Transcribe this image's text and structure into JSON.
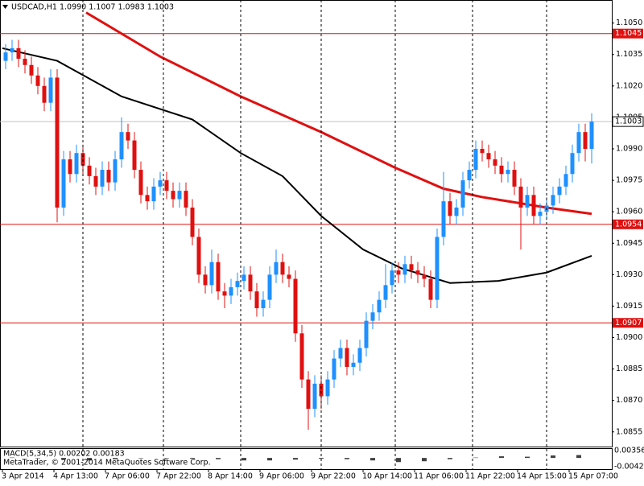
{
  "chart_data": {
    "type": "candlestick",
    "title": "USDCAD,H1  1.0990 1.1007 1.0983 1.1003",
    "up_color": "#1e90ff",
    "down_color": "#e01010",
    "x": [
      1,
      3,
      5,
      7,
      9,
      11,
      13,
      15,
      17,
      19,
      21,
      23,
      25,
      27,
      29,
      31,
      33,
      35,
      37,
      39,
      41,
      43,
      45,
      47,
      49,
      51,
      53,
      55,
      57,
      59,
      61,
      63,
      65,
      67,
      69,
      71,
      73,
      75,
      77,
      79,
      81,
      83,
      85,
      87,
      89,
      91,
      93,
      95,
      97,
      99,
      101,
      103,
      105,
      107,
      109,
      111,
      113,
      115,
      117,
      119,
      121,
      123,
      125,
      127,
      129,
      131,
      133,
      135,
      137,
      139,
      141,
      143,
      145,
      147,
      149,
      151,
      153,
      155,
      157,
      159,
      161,
      163,
      165,
      167,
      169,
      171,
      173,
      175,
      177,
      179,
      181,
      183
    ],
    "open": [
      1.1032,
      1.1036,
      1.1038,
      1.1033,
      1.103,
      1.1025,
      1.102,
      1.1012,
      1.1024,
      1.0962,
      1.0985,
      1.0978,
      1.0988,
      1.0982,
      1.0977,
      1.0972,
      1.098,
      1.0974,
      1.0985,
      1.0998,
      1.0994,
      1.098,
      1.0968,
      1.0965,
      1.0972,
      1.0975,
      1.097,
      1.0966,
      1.097,
      1.0962,
      1.0948,
      1.093,
      1.0925,
      1.0936,
      1.0922,
      1.092,
      1.0924,
      1.0927,
      1.093,
      1.0922,
      1.0914,
      1.0918,
      1.093,
      1.0936,
      1.093,
      1.0928,
      1.0902,
      1.088,
      1.0866,
      1.0878,
      1.0872,
      1.088,
      1.089,
      1.0895,
      1.0886,
      1.0888,
      1.0895,
      1.0908,
      1.0912,
      1.0918,
      1.0925,
      1.0932,
      1.093,
      1.0935,
      1.0932,
      1.093,
      1.0928,
      1.0918,
      1.0948,
      1.0965,
      1.0958,
      1.0962,
      1.0975,
      1.098,
      1.099,
      1.0988,
      1.0985,
      1.0982,
      1.0978,
      1.098,
      1.0972,
      1.0962,
      1.0968,
      1.0958,
      1.096,
      1.0963,
      1.0968,
      1.0972,
      1.0978,
      1.0988,
      1.0998,
      1.099
    ],
    "high": [
      1.104,
      1.1042,
      1.1042,
      1.1037,
      1.1034,
      1.1029,
      1.1024,
      1.1028,
      1.1028,
      1.0989,
      1.0989,
      1.0992,
      1.0992,
      1.0986,
      1.0981,
      1.0984,
      1.0984,
      1.0989,
      1.1005,
      1.1002,
      1.0998,
      1.0984,
      1.0972,
      1.0976,
      1.0979,
      1.0979,
      1.0974,
      1.0974,
      1.0974,
      1.0966,
      1.0952,
      1.0934,
      1.0942,
      1.094,
      1.0926,
      1.0928,
      1.0931,
      1.0934,
      1.0934,
      1.0926,
      1.0922,
      1.0934,
      1.0942,
      1.094,
      1.0934,
      1.0932,
      1.0906,
      1.0884,
      1.0882,
      1.0882,
      1.0884,
      1.0894,
      1.0899,
      1.0899,
      1.0892,
      1.0899,
      1.0912,
      1.0916,
      1.0922,
      1.0935,
      1.0936,
      1.0936,
      1.0939,
      1.0939,
      1.0936,
      1.0934,
      1.0932,
      1.0952,
      1.0979,
      1.0969,
      1.0966,
      1.0979,
      1.0984,
      1.0994,
      1.0994,
      1.0992,
      1.0989,
      1.0986,
      1.0984,
      1.0984,
      1.0976,
      1.0972,
      1.0972,
      1.0964,
      1.0967,
      1.0972,
      1.0976,
      1.0982,
      1.0992,
      1.1002,
      1.1002,
      1.1007
    ],
    "low": [
      1.1028,
      1.1032,
      1.1029,
      1.1026,
      1.1021,
      1.1016,
      1.1008,
      1.1008,
      1.0955,
      1.0958,
      1.0974,
      1.0974,
      1.0978,
      1.0973,
      1.0968,
      1.0968,
      1.097,
      1.097,
      1.0981,
      1.099,
      1.0976,
      1.0964,
      1.0961,
      1.0961,
      1.0968,
      1.0966,
      1.0962,
      1.0962,
      1.0958,
      1.0944,
      1.0926,
      1.0921,
      1.0921,
      1.0918,
      1.0914,
      1.0916,
      1.092,
      1.0923,
      1.0918,
      1.091,
      1.091,
      1.0914,
      1.0926,
      1.0926,
      1.0924,
      1.0898,
      1.0876,
      1.0856,
      1.0862,
      1.0866,
      1.0868,
      1.0876,
      1.0886,
      1.0882,
      1.0882,
      1.0884,
      1.0891,
      1.0904,
      1.0908,
      1.0914,
      1.0921,
      1.0926,
      1.0926,
      1.0928,
      1.0926,
      1.0924,
      1.0914,
      1.0914,
      1.0944,
      1.0954,
      1.0954,
      1.0958,
      1.0971,
      1.0976,
      1.0984,
      1.0981,
      1.0978,
      1.0974,
      1.0974,
      1.0968,
      1.0942,
      1.0958,
      1.0954,
      1.0954,
      1.0956,
      1.0959,
      1.0964,
      1.0968,
      1.0974,
      1.0984,
      1.0984,
      1.0983
    ],
    "close": [
      1.1036,
      1.1038,
      1.1033,
      1.103,
      1.1025,
      1.102,
      1.1012,
      1.1024,
      1.0962,
      1.0985,
      1.0978,
      1.0988,
      1.0982,
      1.0977,
      1.0972,
      1.098,
      1.0974,
      1.0985,
      1.0998,
      1.0994,
      1.098,
      1.0968,
      1.0965,
      1.0972,
      1.0975,
      1.097,
      1.0966,
      1.097,
      1.0962,
      1.0948,
      1.093,
      1.0925,
      1.0936,
      1.0922,
      1.092,
      1.0924,
      1.0927,
      1.093,
      1.0922,
      1.0914,
      1.0918,
      1.093,
      1.0936,
      1.093,
      1.0928,
      1.0902,
      1.088,
      1.0866,
      1.0878,
      1.0872,
      1.088,
      1.089,
      1.0895,
      1.0886,
      1.0888,
      1.0895,
      1.0908,
      1.0912,
      1.0918,
      1.0925,
      1.0932,
      1.093,
      1.0935,
      1.0932,
      1.093,
      1.0928,
      1.0918,
      1.0948,
      1.0965,
      1.0958,
      1.0962,
      1.0975,
      1.098,
      1.099,
      1.0988,
      1.0985,
      1.0982,
      1.0978,
      1.098,
      1.0972,
      1.0962,
      1.0968,
      1.0958,
      1.096,
      1.0963,
      1.0968,
      1.0972,
      1.0978,
      1.0988,
      1.0998,
      1.099,
      1.1003
    ],
    "xlim": [
      -0.75,
      189.25
    ],
    "ylim": [
      1.0848,
      1.1061
    ],
    "xticks": [
      {
        "value": 0,
        "label": "3 Apr 2014"
      },
      {
        "value": 16,
        "label": "4 Apr 13:00"
      },
      {
        "value": 32,
        "label": "7 Apr 06:00"
      },
      {
        "value": 48,
        "label": "7 Apr 22:00"
      },
      {
        "value": 64,
        "label": "8 Apr 14:00"
      },
      {
        "value": 80,
        "label": "9 Apr 06:00"
      },
      {
        "value": 96,
        "label": "9 Apr 22:00"
      },
      {
        "value": 112,
        "label": "10 Apr 14:00"
      },
      {
        "value": 128,
        "label": "11 Apr 06:00"
      },
      {
        "value": 144,
        "label": "11 Apr 22:00"
      },
      {
        "value": 160,
        "label": "14 Apr 15:00"
      },
      {
        "value": 176,
        "label": "15 Apr 07:00"
      }
    ],
    "yticks": [
      {
        "value": 1.105,
        "label": "1.1050"
      },
      1.1035,
      {
        "value": 1.102,
        "label": "1.1020"
      },
      1.1005,
      {
        "value": 1.099,
        "label": "1.0990"
      },
      1.0975,
      {
        "value": 1.096,
        "label": "1.0960"
      },
      1.0945,
      {
        "value": 1.093,
        "label": "1.0930"
      },
      1.0915,
      {
        "value": 1.09,
        "label": "1.0900"
      },
      1.0885,
      {
        "value": 1.087,
        "label": "1.0870"
      },
      1.0855
    ],
    "vgrid": [
      25,
      50,
      74,
      99,
      122,
      146,
      169
    ],
    "levels": [
      {
        "value": 1.1045,
        "color": "#e01010"
      },
      {
        "value": 1.0954,
        "color": "#e01010"
      },
      {
        "value": 1.0907,
        "color": "#e01010"
      }
    ],
    "current_price": {
      "value": 1.1003,
      "color": "#c0c0c0"
    },
    "moving_averages": [
      {
        "color": "#e01010",
        "x": [
          26,
          49,
          74,
          99,
          122,
          137,
          149,
          169,
          183
        ],
        "values": [
          1.1055,
          1.1034,
          1.1015,
          1.0998,
          1.0981,
          1.0971,
          1.0967,
          1.0962,
          1.0959
        ]
      },
      {
        "color": "#000000",
        "x": [
          0,
          17,
          37,
          59,
          74,
          87,
          99,
          112,
          124,
          139,
          154,
          169,
          183
        ],
        "values": [
          1.1038,
          1.1032,
          1.1015,
          1.1004,
          1.0988,
          1.0977,
          1.0958,
          1.0942,
          1.0933,
          1.0926,
          1.0927,
          1.0931,
          1.0939
        ]
      }
    ],
    "indicator": {
      "label": "MACD(5,34,5) 0.00202 0.00183",
      "watermark": "MetaTrader, © 2001-2014 MetaQuotes Software Corp.",
      "color": "#404040",
      "ylim": [
        -0.00424,
        0.00356
      ],
      "yticks": [
        0.00356,
        -0.00424
      ],
      "x": [
        3,
        11,
        19,
        27,
        35,
        43,
        51,
        59,
        67,
        75,
        83,
        91,
        99,
        107,
        115,
        123,
        131,
        139,
        147,
        155,
        163,
        171,
        179
      ],
      "values": [
        0.0002,
        0.0,
        -0.0008,
        -0.0012,
        -0.0006,
        0.0,
        -0.0002,
        -0.0004,
        -0.0006,
        -0.0012,
        -0.0012,
        -0.0008,
        -0.0004,
        -0.0006,
        -0.0012,
        -0.002,
        -0.0016,
        -0.0006,
        0.0002,
        0.0008,
        0.0006,
        0.0012,
        0.0014
      ]
    }
  }
}
